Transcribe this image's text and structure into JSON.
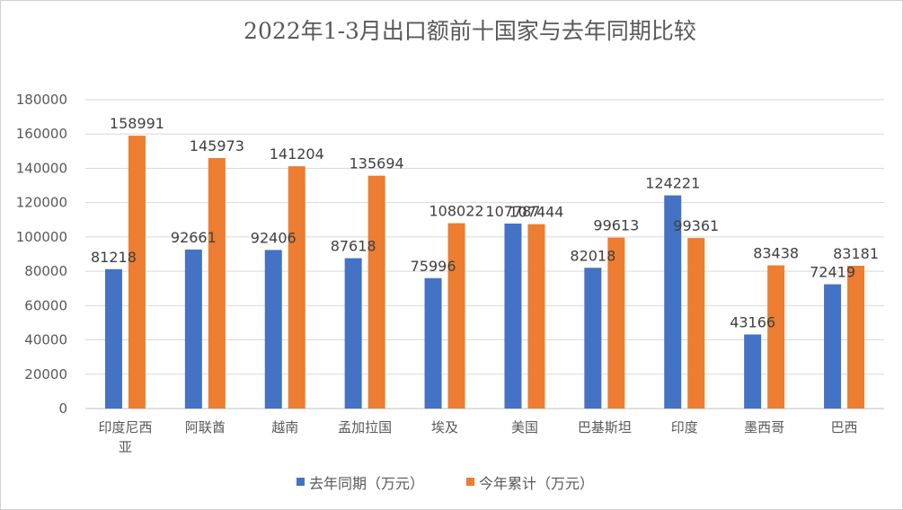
{
  "chart_data": {
    "type": "bar",
    "title": "2022年1-3月出口额前十国家与去年同期比较",
    "categories": [
      "印度尼西亚",
      "阿联酋",
      "越南",
      "孟加拉国",
      "埃及",
      "美国",
      "巴基斯坦",
      "印度",
      "墨西哥",
      "巴西"
    ],
    "series": [
      {
        "name": "去年同期（万元）",
        "color": "#4472c4",
        "values": [
          81218,
          92661,
          92406,
          87618,
          75996,
          107787,
          82018,
          124221,
          43166,
          72419
        ]
      },
      {
        "name": "今年累计（万元）",
        "color": "#ed7d31",
        "values": [
          158991,
          145973,
          141204,
          135694,
          108022,
          107444,
          99613,
          99361,
          83438,
          83181
        ]
      }
    ],
    "ylim": [
      0,
      180000
    ],
    "yticks": [
      0,
      20000,
      40000,
      60000,
      80000,
      100000,
      120000,
      140000,
      160000,
      180000
    ],
    "grid": true,
    "legend_position": "bottom",
    "data_labels": true
  }
}
